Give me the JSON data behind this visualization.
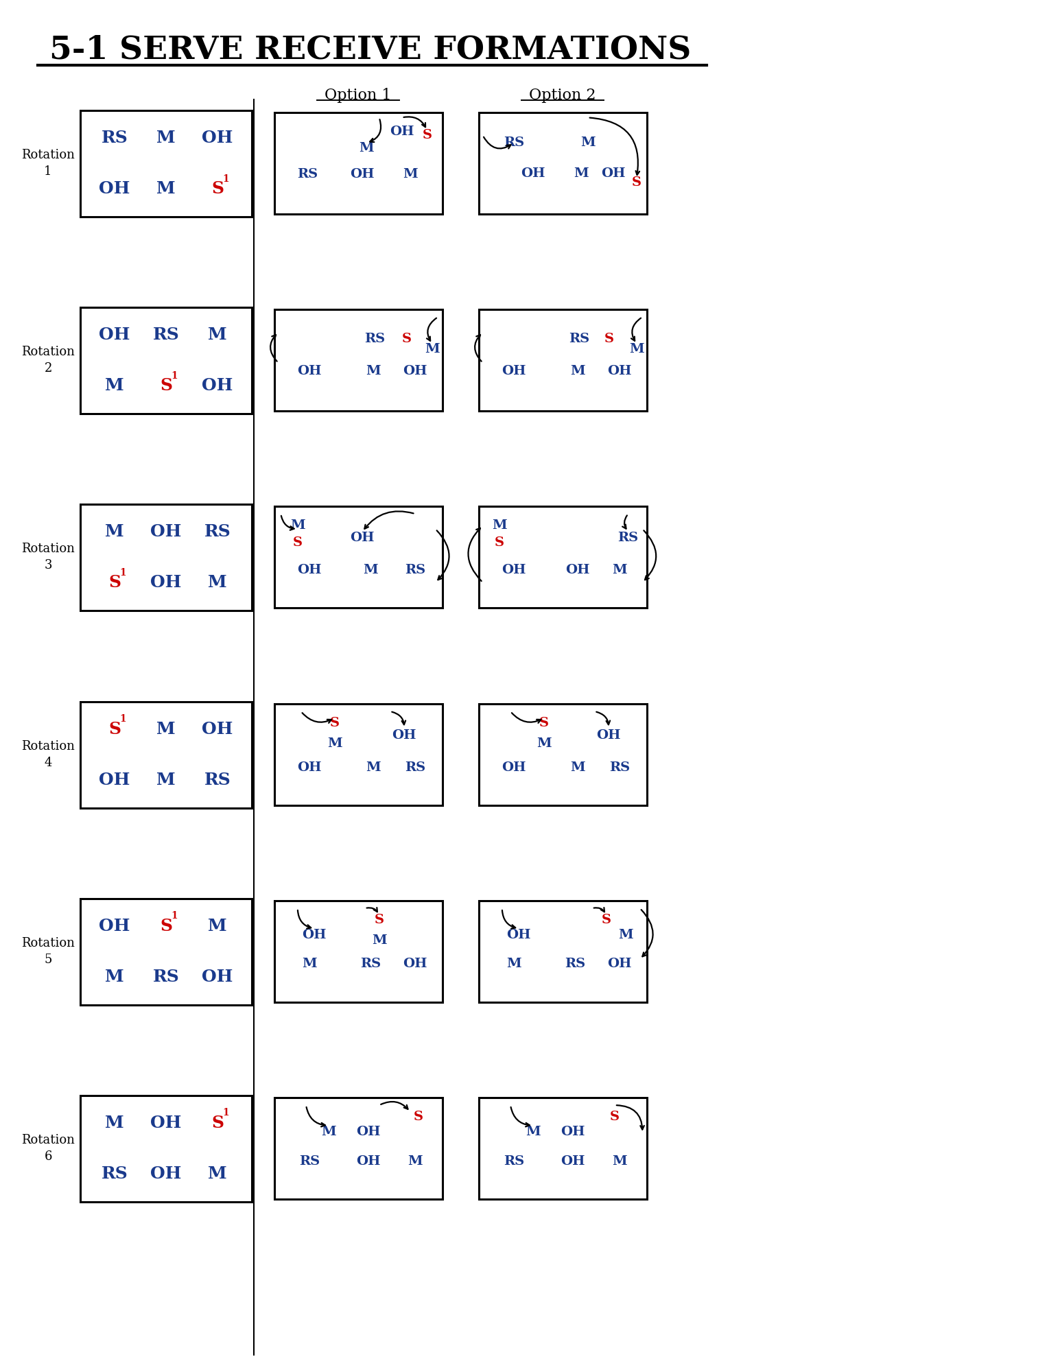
{
  "title": "5-1 SERVE RECEIVE FORMATIONS",
  "bg_color": "#ffffff",
  "blue_color": "#1a3a8c",
  "red_color": "#cc0000",
  "black_color": "#000000",
  "base_formations": [
    [
      [
        "RS",
        "M",
        "OH"
      ],
      [
        "OH",
        "M",
        "S1"
      ]
    ],
    [
      [
        "OH",
        "RS",
        "M"
      ],
      [
        "M",
        "S1",
        "OH"
      ]
    ],
    [
      [
        "M",
        "OH",
        "RS"
      ],
      [
        "S1",
        "OH",
        "M"
      ]
    ],
    [
      [
        "S1",
        "M",
        "OH"
      ],
      [
        "OH",
        "M",
        "RS"
      ]
    ],
    [
      [
        "OH",
        "S1",
        "M"
      ],
      [
        "M",
        "RS",
        "OH"
      ]
    ],
    [
      [
        "M",
        "OH",
        "S1"
      ],
      [
        "RS",
        "OH",
        "M"
      ]
    ]
  ],
  "rot_labels": [
    "Rotation\n1",
    "Rotation\n2",
    "Rotation\n3",
    "Rotation\n4",
    "Rotation\n5",
    "Rotation\n6"
  ]
}
